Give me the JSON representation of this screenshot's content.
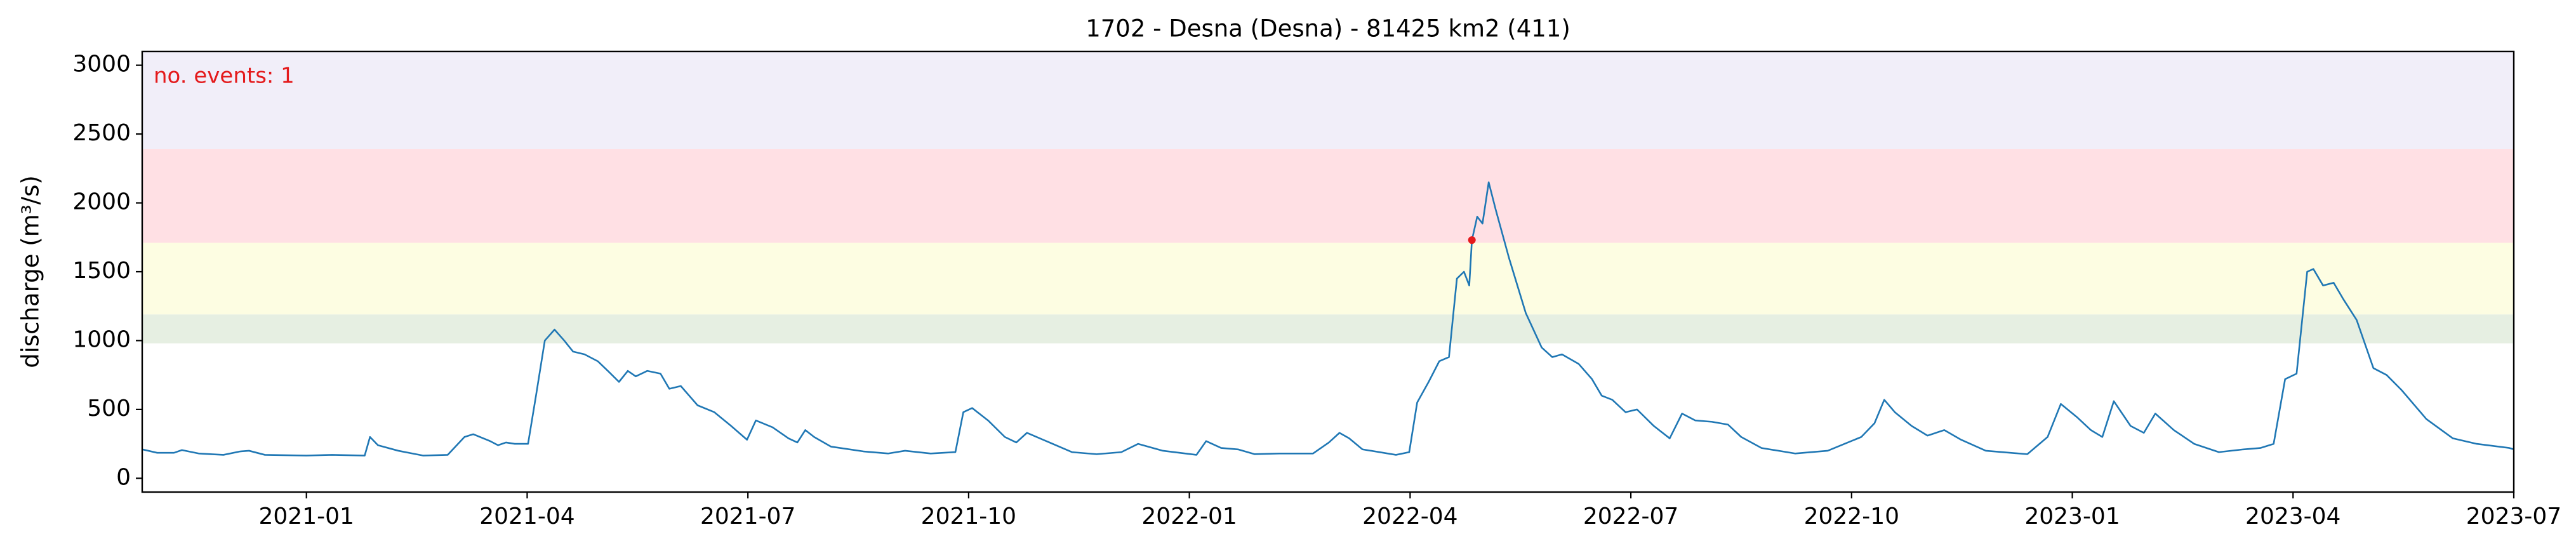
{
  "chart_data": {
    "type": "line",
    "title": "1702 - Desna (Desna) - 81425 km2 (411)",
    "y_label": "discharge (m³/s)",
    "annotation": "no. events: 1",
    "xlim": [
      2020.814,
      2023.5
    ],
    "ylim": [
      -100,
      3100
    ],
    "xticks": [
      {
        "value": 2021.0,
        "label": "2021-01"
      },
      {
        "value": 2021.25,
        "label": "2021-04"
      },
      {
        "value": 2021.5,
        "label": "2021-07"
      },
      {
        "value": 2021.75,
        "label": "2021-10"
      },
      {
        "value": 2022.0,
        "label": "2022-01"
      },
      {
        "value": 2022.25,
        "label": "2022-04"
      },
      {
        "value": 2022.5,
        "label": "2022-07"
      },
      {
        "value": 2022.75,
        "label": "2022-10"
      },
      {
        "value": 2023.0,
        "label": "2023-01"
      },
      {
        "value": 2023.25,
        "label": "2023-04"
      },
      {
        "value": 2023.5,
        "label": "2023-07"
      }
    ],
    "yticks": [
      0,
      500,
      1000,
      1500,
      2000,
      2500,
      3000
    ],
    "bands": [
      {
        "from": 980,
        "to": 1190,
        "color": "#e6efe2"
      },
      {
        "from": 1190,
        "to": 1710,
        "color": "#fdfde2"
      },
      {
        "from": 1710,
        "to": 2390,
        "color": "#ffe0e4"
      },
      {
        "from": 2390,
        "to": 3100,
        "color": "#f1eef9"
      }
    ],
    "series": [
      {
        "color": "#1f77b4",
        "x": [
          2020.814,
          2020.831,
          2020.85,
          2020.859,
          2020.878,
          2020.906,
          2020.925,
          2020.935,
          2020.953,
          2021.0,
          2021.029,
          2021.066,
          2021.072,
          2021.081,
          2021.104,
          2021.132,
          2021.16,
          2021.179,
          2021.189,
          2021.208,
          2021.217,
          2021.226,
          2021.236,
          2021.251,
          2021.26,
          2021.27,
          2021.281,
          2021.292,
          2021.302,
          2021.315,
          2021.33,
          2021.343,
          2021.354,
          2021.364,
          2021.373,
          2021.386,
          2021.401,
          2021.411,
          2021.424,
          2021.443,
          2021.462,
          2021.481,
          2021.499,
          2021.509,
          2021.528,
          2021.546,
          2021.556,
          2021.565,
          2021.575,
          2021.594,
          2021.631,
          2021.659,
          2021.678,
          2021.707,
          2021.735,
          2021.744,
          2021.754,
          2021.772,
          2021.791,
          2021.804,
          2021.816,
          2021.838,
          2021.867,
          2021.895,
          2021.923,
          2021.942,
          2021.97,
          2022.008,
          2022.019,
          2022.036,
          2022.055,
          2022.074,
          2022.102,
          2022.14,
          2022.158,
          2022.17,
          2022.181,
          2022.196,
          2022.234,
          2022.249,
          2022.258,
          2022.271,
          2022.283,
          2022.294,
          2022.303,
          2022.311,
          2022.317,
          2022.32,
          2022.326,
          2022.332,
          2022.339,
          2022.347,
          2022.362,
          2022.381,
          2022.399,
          2022.411,
          2022.422,
          2022.441,
          2022.456,
          2022.467,
          2022.479,
          2022.494,
          2022.507,
          2022.526,
          2022.544,
          2022.558,
          2022.573,
          2022.592,
          2022.61,
          2022.625,
          2022.648,
          2022.686,
          2022.723,
          2022.742,
          2022.761,
          2022.776,
          2022.787,
          2022.799,
          2022.818,
          2022.836,
          2022.855,
          2022.874,
          2022.902,
          2022.949,
          2022.972,
          2022.987,
          2023.006,
          2023.021,
          2023.034,
          2023.047,
          2023.066,
          2023.081,
          2023.094,
          2023.115,
          2023.138,
          2023.166,
          2023.194,
          2023.213,
          2023.228,
          2023.241,
          2023.254,
          2023.266,
          2023.273,
          2023.284,
          2023.296,
          2023.307,
          2023.322,
          2023.341,
          2023.356,
          2023.373,
          2023.401,
          2023.431,
          2023.458,
          2023.495,
          2023.5
        ],
        "values": [
          210,
          185,
          185,
          205,
          180,
          170,
          195,
          200,
          170,
          165,
          170,
          165,
          300,
          240,
          200,
          165,
          170,
          300,
          320,
          270,
          240,
          260,
          250,
          250,
          600,
          1000,
          1080,
          1000,
          920,
          900,
          850,
          770,
          700,
          780,
          740,
          780,
          760,
          650,
          670,
          530,
          480,
          380,
          280,
          420,
          370,
          290,
          260,
          350,
          300,
          230,
          195,
          180,
          200,
          180,
          190,
          480,
          510,
          420,
          300,
          260,
          330,
          270,
          190,
          175,
          190,
          250,
          200,
          170,
          270,
          220,
          210,
          175,
          180,
          180,
          260,
          330,
          290,
          210,
          170,
          190,
          550,
          700,
          850,
          880,
          1450,
          1500,
          1400,
          1730,
          1900,
          1850,
          2150,
          1950,
          1600,
          1200,
          950,
          880,
          900,
          830,
          720,
          600,
          570,
          480,
          500,
          380,
          290,
          470,
          420,
          410,
          390,
          300,
          220,
          180,
          200,
          250,
          300,
          400,
          570,
          480,
          380,
          310,
          350,
          280,
          200,
          175,
          300,
          540,
          440,
          350,
          300,
          560,
          380,
          330,
          470,
          350,
          250,
          190,
          210,
          220,
          250,
          720,
          760,
          1500,
          1520,
          1400,
          1420,
          1300,
          1150,
          800,
          750,
          640,
          430,
          290,
          250,
          220,
          210
        ]
      }
    ],
    "events": {
      "color": "#e41a1c",
      "x": [
        2022.32
      ],
      "values": [
        1730
      ]
    }
  }
}
